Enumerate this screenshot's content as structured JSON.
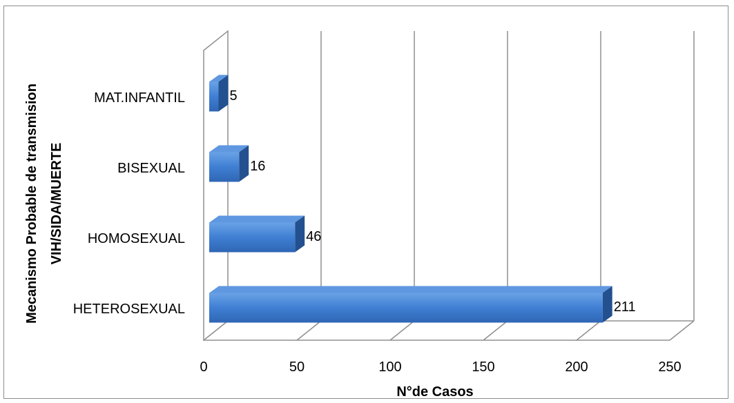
{
  "chart_data": {
    "type": "bar",
    "orientation": "horizontal",
    "style": "3d",
    "categories": [
      "HETEROSEXUAL",
      "HOMOSEXUAL",
      "BISEXUAL",
      "MAT.INFANTIL"
    ],
    "values": [
      211,
      46,
      16,
      5
    ],
    "data_labels": [
      "211",
      "46",
      "16",
      "5"
    ],
    "xlabel": "N°de Casos",
    "ylabel_lines": [
      "Mecanismo Probable de transmision",
      "VIH/SIDA/MUERTE"
    ],
    "xlim": [
      0,
      250
    ],
    "xticks": [
      "0",
      "50",
      "100",
      "150",
      "200",
      "250"
    ],
    "grid": true,
    "legend": "none",
    "colors": {
      "bar": "#3f7fd3",
      "bar_top": "#5f98e0",
      "bar_side": "#23508f",
      "grid": "#8f8f8f"
    }
  }
}
